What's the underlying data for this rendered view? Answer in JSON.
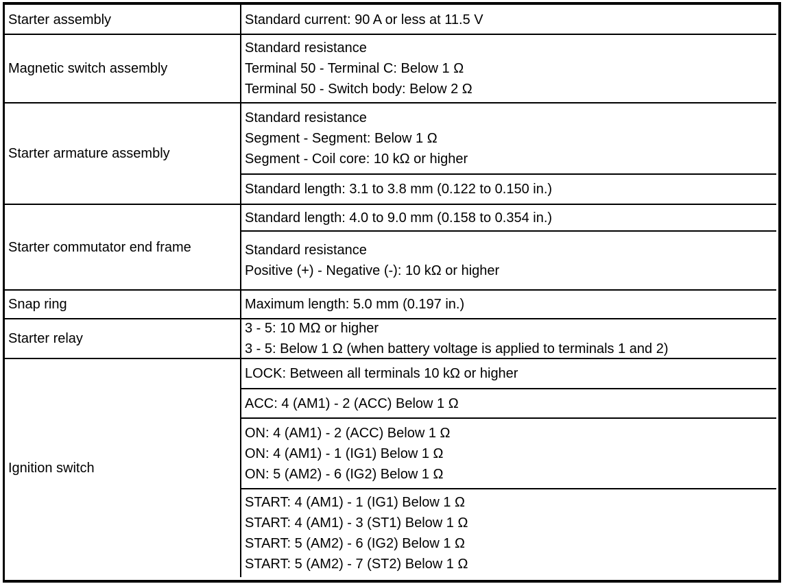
{
  "rows": [
    {
      "component": "Starter assembly",
      "specs": [
        [
          "Standard current: 90 A or less at 11.5 V"
        ]
      ]
    },
    {
      "component": "Magnetic switch assembly",
      "specs": [
        [
          "Standard resistance",
          "Terminal 50 - Terminal C: Below 1 Ω",
          "Terminal 50 - Switch body: Below 2 Ω"
        ]
      ]
    },
    {
      "component": "Starter armature assembly",
      "specs": [
        [
          "Standard resistance",
          "Segment - Segment: Below 1 Ω",
          "Segment - Coil core: 10 kΩ or higher"
        ],
        [
          "Standard length: 3.1 to 3.8 mm (0.122 to 0.150 in.)"
        ]
      ]
    },
    {
      "component": "Starter commutator end frame",
      "specs": [
        [
          "Standard length: 4.0 to 9.0 mm (0.158 to 0.354 in.)"
        ],
        [
          "Standard resistance",
          "Positive (+) - Negative (-): 10 kΩ or higher"
        ]
      ]
    },
    {
      "component": "Snap ring",
      "specs": [
        [
          "Maximum length: 5.0 mm (0.197 in.)"
        ]
      ]
    },
    {
      "component": "Starter relay",
      "specs": [
        [
          "3 - 5: 10 MΩ or higher",
          "3 - 5: Below 1 Ω (when battery voltage is applied to terminals 1 and 2)"
        ]
      ]
    },
    {
      "component": "Ignition switch",
      "specs": [
        [
          "LOCK: Between all terminals 10 kΩ or higher"
        ],
        [
          "ACC: 4 (AM1) - 2 (ACC) Below 1 Ω"
        ],
        [
          "ON: 4 (AM1) - 2 (ACC) Below 1 Ω",
          "ON: 4 (AM1) - 1 (IG1) Below 1 Ω",
          "ON: 5 (AM2) - 6 (IG2) Below 1 Ω"
        ],
        [
          "START: 4 (AM1) - 1 (IG1) Below 1 Ω",
          "START: 4 (AM1) - 3 (ST1) Below 1 Ω",
          "START: 5 (AM2) - 6 (IG2) Below 1 Ω",
          "START: 5 (AM2) - 7 (ST2) Below 1 Ω"
        ]
      ]
    }
  ]
}
